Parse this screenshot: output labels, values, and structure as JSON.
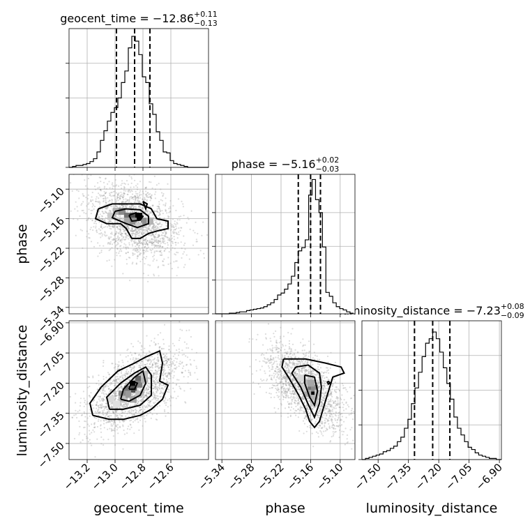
{
  "figure": {
    "background": "#ffffff",
    "line_color": "#000000",
    "scatter_color": "#9a9a9a",
    "grid_color": "#b0b0b0"
  },
  "chart_data": {
    "type": "corner",
    "grid": true,
    "parameters": [
      {
        "name": "geocent_time",
        "axis_label": "geocent_time",
        "range": [
          -13.33,
          -12.33
        ],
        "ticks": [
          -13.2,
          -13.0,
          -12.8,
          -12.6
        ],
        "tick_labels": [
          "−13.2",
          "−13.0",
          "−12.8",
          "−12.6"
        ],
        "title": {
          "prefix": "geocent_time = ",
          "value": "−12.86",
          "plus": "+0.11",
          "minus": "−0.13"
        },
        "quantiles": [
          -12.99,
          -12.86,
          -12.75
        ],
        "hist_bin_edges": [
          -13.33,
          -13.305,
          -13.28,
          -13.255,
          -13.23,
          -13.205,
          -13.18,
          -13.155,
          -13.13,
          -13.105,
          -13.08,
          -13.055,
          -13.03,
          -13.005,
          -12.98,
          -12.955,
          -12.93,
          -12.905,
          -12.88,
          -12.855,
          -12.83,
          -12.805,
          -12.78,
          -12.755,
          -12.73,
          -12.705,
          -12.68,
          -12.655,
          -12.63,
          -12.605,
          -12.58,
          -12.555,
          -12.53,
          -12.505,
          -12.48,
          -12.455,
          -12.43,
          -12.405,
          -12.38,
          -12.355,
          -12.33
        ],
        "hist_counts": [
          0,
          1,
          2,
          2,
          3,
          4,
          6,
          9,
          16,
          28,
          38,
          48,
          57,
          62,
          72,
          88,
          100,
          124,
          136,
          131,
          117,
          94,
          88,
          66,
          55,
          37,
          28,
          16,
          15,
          7,
          4,
          3,
          2,
          1,
          0,
          0,
          0,
          0,
          0,
          0
        ],
        "hist_ylim": [
          0,
          144
        ],
        "hist_yticks": [
          0,
          36,
          72,
          108
        ]
      },
      {
        "name": "phase",
        "axis_label": "phase",
        "range": [
          -5.353,
          -5.07
        ],
        "ticks": [
          -5.34,
          -5.28,
          -5.22,
          -5.16,
          -5.1
        ],
        "tick_labels": [
          "−5.34",
          "−5.28",
          "−5.22",
          "−5.16",
          "−5.10"
        ],
        "title": {
          "prefix": "phase = ",
          "value": "−5.16",
          "plus": "+0.02",
          "minus": "−0.03"
        },
        "quantiles": [
          -5.185,
          -5.16,
          -5.14
        ],
        "hist_bin_edges": [
          -5.353,
          -5.346,
          -5.339,
          -5.332,
          -5.325,
          -5.318,
          -5.311,
          -5.304,
          -5.297,
          -5.29,
          -5.283,
          -5.276,
          -5.269,
          -5.262,
          -5.255,
          -5.248,
          -5.241,
          -5.234,
          -5.227,
          -5.22,
          -5.213,
          -5.206,
          -5.199,
          -5.192,
          -5.185,
          -5.178,
          -5.171,
          -5.164,
          -5.157,
          -5.15,
          -5.143,
          -5.136,
          -5.129,
          -5.122,
          -5.115,
          -5.108,
          -5.101,
          -5.094,
          -5.087,
          -5.08,
          -5.073
        ],
        "hist_counts": [
          0,
          0,
          0,
          0,
          1,
          1,
          2,
          3,
          3,
          5,
          6,
          7,
          8,
          9,
          11,
          14,
          17,
          22,
          29,
          32,
          38,
          46,
          58,
          79,
          97,
          102,
          114,
          183,
          207,
          176,
          156,
          103,
          33,
          27,
          17,
          11,
          8,
          6,
          3,
          1
        ],
        "hist_ylim": [
          0,
          215
        ],
        "hist_yticks": [
          0,
          52,
          104,
          156
        ]
      },
      {
        "name": "luminosity_distance",
        "axis_label": "luminosity_distance",
        "range": [
          -7.58,
          -6.89
        ],
        "ticks": [
          -7.5,
          -7.35,
          -7.2,
          -7.05,
          -6.9
        ],
        "tick_labels": [
          "−7.50",
          "−7.35",
          "−7.20",
          "−7.05",
          "−6.90"
        ],
        "title": {
          "prefix": "luminosity_distance = ",
          "value": "−7.23",
          "plus": "+0.08",
          "minus": "−0.09"
        },
        "quantiles": [
          -7.32,
          -7.23,
          -7.145
        ],
        "hist_bin_edges": [
          -7.58,
          -7.5625,
          -7.545,
          -7.5275,
          -7.51,
          -7.4925,
          -7.475,
          -7.4575,
          -7.44,
          -7.4225,
          -7.405,
          -7.3875,
          -7.37,
          -7.3525,
          -7.335,
          -7.3175,
          -7.3,
          -7.2825,
          -7.265,
          -7.2475,
          -7.23,
          -7.2125,
          -7.195,
          -7.1775,
          -7.16,
          -7.1425,
          -7.125,
          -7.1075,
          -7.09,
          -7.0725,
          -7.055,
          -7.0375,
          -7.02,
          -7.0025,
          -6.985,
          -6.9675,
          -6.95,
          -6.9325,
          -6.915,
          -6.8975,
          -6.89
        ],
        "hist_counts": [
          0,
          1,
          2,
          3,
          4,
          5,
          7,
          8,
          10,
          12,
          16,
          20,
          28,
          36,
          50,
          64,
          78,
          92,
          104,
          108,
          114,
          108,
          96,
          82,
          68,
          54,
          38,
          28,
          22,
          16,
          11,
          9,
          6,
          4,
          3,
          2,
          1,
          1,
          0,
          0
        ],
        "hist_ylim": [
          0,
          124
        ],
        "hist_yticks": [
          0,
          31,
          62,
          93
        ]
      }
    ],
    "pairs": [
      {
        "x": "geocent_time",
        "y": "phase",
        "scatter_center": [
          -12.86,
          -5.165
        ],
        "scatter_spread": [
          0.17,
          0.04
        ],
        "density_cells": [
          {
            "x": -12.99,
            "y": -5.145,
            "level": 0.3
          },
          {
            "x": -12.95,
            "y": -5.145,
            "level": 0.45
          },
          {
            "x": -12.91,
            "y": -5.155,
            "level": 0.55
          },
          {
            "x": -12.87,
            "y": -5.155,
            "level": 0.7
          },
          {
            "x": -12.83,
            "y": -5.155,
            "level": 1.0
          },
          {
            "x": -12.79,
            "y": -5.165,
            "level": 0.45
          },
          {
            "x": -12.75,
            "y": -5.165,
            "level": 0.3
          },
          {
            "x": -12.91,
            "y": -5.165,
            "level": 0.35
          },
          {
            "x": -12.87,
            "y": -5.165,
            "level": 0.45
          },
          {
            "x": -13.03,
            "y": -5.155,
            "level": 0.2
          },
          {
            "x": -12.83,
            "y": -5.175,
            "level": 0.2
          }
        ],
        "contours": [
          [
            [
              -13.12,
              -5.14
            ],
            [
              -13.02,
              -5.13
            ],
            [
              -12.9,
              -5.13
            ],
            [
              -12.82,
              -5.13
            ],
            [
              -12.74,
              -5.14
            ],
            [
              -12.7,
              -5.16
            ],
            [
              -12.62,
              -5.165
            ],
            [
              -12.62,
              -5.18
            ],
            [
              -12.7,
              -5.185
            ],
            [
              -12.76,
              -5.19
            ],
            [
              -12.82,
              -5.2
            ],
            [
              -12.88,
              -5.2
            ],
            [
              -12.92,
              -5.18
            ],
            [
              -12.96,
              -5.17
            ],
            [
              -13.06,
              -5.17
            ],
            [
              -13.14,
              -5.16
            ],
            [
              -13.12,
              -5.14
            ]
          ],
          [
            [
              -13.0,
              -5.145
            ],
            [
              -12.92,
              -5.14
            ],
            [
              -12.82,
              -5.142
            ],
            [
              -12.76,
              -5.155
            ],
            [
              -12.76,
              -5.17
            ],
            [
              -12.84,
              -5.178
            ],
            [
              -12.92,
              -5.17
            ],
            [
              -13.02,
              -5.158
            ],
            [
              -13.0,
              -5.145
            ]
          ],
          [
            [
              -12.9,
              -5.153
            ],
            [
              -12.85,
              -5.148
            ],
            [
              -12.8,
              -5.155
            ],
            [
              -12.82,
              -5.163
            ],
            [
              -12.88,
              -5.165
            ],
            [
              -12.9,
              -5.153
            ]
          ],
          [
            [
              -12.8,
              -5.125
            ],
            [
              -12.77,
              -5.13
            ],
            [
              -12.78,
              -5.14
            ],
            [
              -12.8,
              -5.125
            ]
          ]
        ]
      },
      {
        "x": "geocent_time",
        "y": "luminosity_distance",
        "scatter_center": [
          -12.86,
          -7.23
        ],
        "scatter_spread": [
          0.17,
          0.1
        ],
        "density_cells": [
          {
            "x": -12.87,
            "y": -7.205,
            "level": 1.0
          },
          {
            "x": -12.87,
            "y": -7.23,
            "level": 0.7
          },
          {
            "x": -12.83,
            "y": -7.18,
            "level": 0.6
          },
          {
            "x": -12.83,
            "y": -7.205,
            "level": 0.5
          },
          {
            "x": -12.91,
            "y": -7.23,
            "level": 0.55
          },
          {
            "x": -12.91,
            "y": -7.255,
            "level": 0.4
          },
          {
            "x": -12.95,
            "y": -7.255,
            "level": 0.45
          },
          {
            "x": -12.87,
            "y": -7.28,
            "level": 0.35
          },
          {
            "x": -12.79,
            "y": -7.18,
            "level": 0.3
          },
          {
            "x": -12.95,
            "y": -7.28,
            "level": 0.25
          },
          {
            "x": -12.83,
            "y": -7.255,
            "level": 0.25
          },
          {
            "x": -12.79,
            "y": -7.155,
            "level": 0.25
          },
          {
            "x": -13.03,
            "y": -7.28,
            "level": 0.15
          },
          {
            "x": -12.99,
            "y": -7.305,
            "level": 0.12
          }
        ],
        "contours": [
          [
            [
              -13.16,
              -7.36
            ],
            [
              -13.18,
              -7.3
            ],
            [
              -13.1,
              -7.22
            ],
            [
              -12.98,
              -7.14
            ],
            [
              -12.86,
              -7.1
            ],
            [
              -12.78,
              -7.07
            ],
            [
              -12.68,
              -7.04
            ],
            [
              -12.66,
              -7.1
            ],
            [
              -12.68,
              -7.19
            ],
            [
              -12.62,
              -7.21
            ],
            [
              -12.66,
              -7.28
            ],
            [
              -12.74,
              -7.33
            ],
            [
              -12.82,
              -7.36
            ],
            [
              -12.94,
              -7.38
            ],
            [
              -13.04,
              -7.38
            ],
            [
              -13.16,
              -7.36
            ]
          ],
          [
            [
              -13.04,
              -7.33
            ],
            [
              -13.06,
              -7.27
            ],
            [
              -12.96,
              -7.2
            ],
            [
              -12.86,
              -7.15
            ],
            [
              -12.78,
              -7.12
            ],
            [
              -12.74,
              -7.16
            ],
            [
              -12.74,
              -7.26
            ],
            [
              -12.82,
              -7.31
            ],
            [
              -12.94,
              -7.33
            ],
            [
              -13.04,
              -7.33
            ]
          ],
          [
            [
              -12.96,
              -7.28
            ],
            [
              -12.94,
              -7.23
            ],
            [
              -12.86,
              -7.17
            ],
            [
              -12.8,
              -7.14
            ],
            [
              -12.78,
              -7.2
            ],
            [
              -12.82,
              -7.26
            ],
            [
              -12.9,
              -7.29
            ],
            [
              -12.96,
              -7.28
            ]
          ],
          [
            [
              -12.9,
              -7.23
            ],
            [
              -12.88,
              -7.19
            ],
            [
              -12.84,
              -7.2
            ],
            [
              -12.86,
              -7.23
            ],
            [
              -12.9,
              -7.23
            ]
          ]
        ]
      },
      {
        "x": "phase",
        "y": "luminosity_distance",
        "scatter_center": [
          -5.17,
          -7.22
        ],
        "scatter_spread": [
          0.04,
          0.1
        ],
        "density_cells": [
          {
            "x": -5.159,
            "y": -7.25,
            "level": 1.0
          },
          {
            "x": -5.159,
            "y": -7.225,
            "level": 0.55
          },
          {
            "x": -5.152,
            "y": -7.225,
            "level": 0.45
          },
          {
            "x": -5.166,
            "y": -7.2,
            "level": 0.3
          },
          {
            "x": -5.159,
            "y": -7.2,
            "level": 0.35
          },
          {
            "x": -5.152,
            "y": -7.275,
            "level": 0.3
          },
          {
            "x": -5.166,
            "y": -7.25,
            "level": 0.35
          },
          {
            "x": -5.173,
            "y": -7.225,
            "level": 0.2
          },
          {
            "x": -5.145,
            "y": -7.25,
            "level": 0.25
          },
          {
            "x": -5.152,
            "y": -7.3,
            "level": 0.2
          },
          {
            "x": -5.18,
            "y": -7.175,
            "level": 0.15
          }
        ],
        "contours": [
          [
            [
              -5.215,
              -7.08
            ],
            [
              -5.17,
              -7.08
            ],
            [
              -5.13,
              -7.1
            ],
            [
              -5.098,
              -7.12
            ],
            [
              -5.092,
              -7.15
            ],
            [
              -5.104,
              -7.16
            ],
            [
              -5.115,
              -7.17
            ],
            [
              -5.13,
              -7.29
            ],
            [
              -5.142,
              -7.39
            ],
            [
              -5.152,
              -7.42
            ],
            [
              -5.162,
              -7.39
            ],
            [
              -5.17,
              -7.33
            ],
            [
              -5.184,
              -7.26
            ],
            [
              -5.205,
              -7.17
            ],
            [
              -5.218,
              -7.12
            ],
            [
              -5.215,
              -7.08
            ]
          ],
          [
            [
              -5.19,
              -7.12
            ],
            [
              -5.165,
              -7.11
            ],
            [
              -5.142,
              -7.15
            ],
            [
              -5.138,
              -7.22
            ],
            [
              -5.142,
              -7.3
            ],
            [
              -5.152,
              -7.37
            ],
            [
              -5.166,
              -7.3
            ],
            [
              -5.18,
              -7.22
            ],
            [
              -5.198,
              -7.15
            ],
            [
              -5.19,
              -7.12
            ]
          ],
          [
            [
              -5.172,
              -7.16
            ],
            [
              -5.152,
              -7.17
            ],
            [
              -5.146,
              -7.24
            ],
            [
              -5.152,
              -7.31
            ],
            [
              -5.162,
              -7.27
            ],
            [
              -5.172,
              -7.2
            ],
            [
              -5.172,
              -7.16
            ]
          ],
          [
            [
              -5.124,
              -7.19
            ],
            [
              -5.12,
              -7.2
            ],
            [
              -5.124,
              -7.205
            ],
            [
              -5.126,
              -7.195
            ],
            [
              -5.124,
              -7.19
            ]
          ]
        ]
      }
    ]
  }
}
